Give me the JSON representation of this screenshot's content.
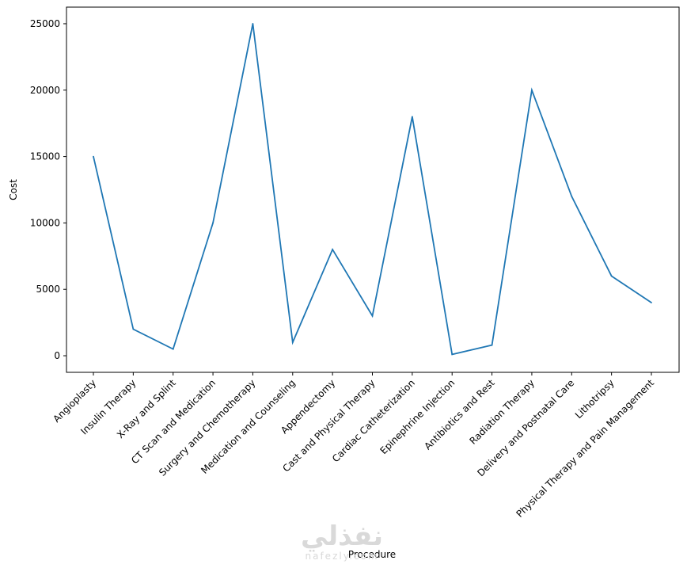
{
  "chart_data": {
    "type": "line",
    "categories": [
      "Angioplasty",
      "Insulin Therapy",
      "X-Ray and Splint",
      "CT Scan and Medication",
      "Surgery and Chemotherapy",
      "Medication and Counseling",
      "Appendectomy",
      "Cast and Physical Therapy",
      "Cardiac Catheterization",
      "Epinephrine Injection",
      "Antibiotics and Rest",
      "Radiation Therapy",
      "Delivery and Postnatal Care",
      "Lithotripsy",
      "Physical Therapy and Pain Management"
    ],
    "values": [
      15000,
      2000,
      500,
      10000,
      25000,
      1000,
      8000,
      3000,
      18000,
      100,
      800,
      20000,
      12000,
      6000,
      4000
    ],
    "title": "",
    "xlabel": "Procedure",
    "ylabel": "Cost",
    "yticks": [
      0,
      5000,
      10000,
      15000,
      20000,
      25000
    ],
    "ylim": [
      -1250,
      26250
    ],
    "grid": false,
    "line_color": "#1f77b4"
  },
  "watermark": {
    "main": "نفذلي",
    "sub": "nafezly.com"
  }
}
